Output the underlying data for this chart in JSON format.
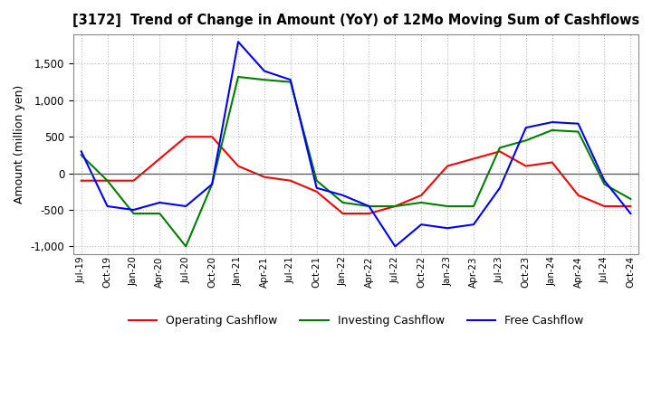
{
  "title": "[3172]  Trend of Change in Amount (YoY) of 12Mo Moving Sum of Cashflows",
  "ylabel": "Amount (million yen)",
  "ylim": [
    -1100,
    1900
  ],
  "yticks": [
    -1000,
    -500,
    0,
    500,
    1000,
    1500
  ],
  "background_color": "#ffffff",
  "grid_color": "#bbbbbb",
  "x_labels": [
    "Jul-19",
    "Oct-19",
    "Jan-20",
    "Apr-20",
    "Jul-20",
    "Oct-20",
    "Jan-21",
    "Apr-21",
    "Jul-21",
    "Oct-21",
    "Jan-22",
    "Apr-22",
    "Jul-22",
    "Oct-22",
    "Jan-23",
    "Apr-23",
    "Jul-23",
    "Oct-23",
    "Jan-24",
    "Apr-24",
    "Jul-24",
    "Oct-24"
  ],
  "operating": [
    -100,
    -100,
    -100,
    200,
    500,
    500,
    100,
    -50,
    -100,
    -250,
    -550,
    -550,
    -450,
    -300,
    100,
    200,
    300,
    100,
    150,
    -300,
    -450,
    -450
  ],
  "investing": [
    250,
    -100,
    -550,
    -550,
    -1000,
    -150,
    1320,
    1280,
    1250,
    -100,
    -400,
    -450,
    -450,
    -400,
    -450,
    -450,
    350,
    450,
    590,
    570,
    -150,
    -350
  ],
  "free": [
    300,
    -450,
    -500,
    -400,
    -450,
    -150,
    1800,
    1400,
    1280,
    -200,
    -300,
    -450,
    -1000,
    -700,
    -750,
    -700,
    -200,
    625,
    700,
    680,
    -100,
    -550
  ],
  "operating_color": "#ff0000",
  "investing_color": "#008000",
  "free_color": "#0000ff",
  "line_width": 1.5
}
